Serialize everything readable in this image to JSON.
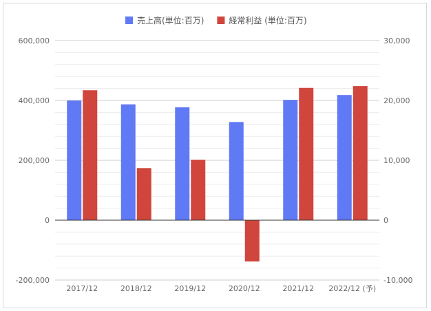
{
  "chart_data": {
    "type": "bar",
    "categories": [
      "2017/12",
      "2018/12",
      "2019/12",
      "2020/12",
      "2021/12",
      "2022/12 (予)"
    ],
    "series": [
      {
        "name": "売上高(単位:百万)",
        "axis": "left",
        "color": "#6079F4",
        "values": [
          400000,
          387000,
          377000,
          328000,
          402000,
          418000
        ]
      },
      {
        "name": "経常利益 (単位:百万)",
        "axis": "right",
        "color": "#D0453C",
        "values": [
          21700,
          8700,
          10100,
          -6900,
          22100,
          22400
        ]
      }
    ],
    "left_axis": {
      "min": -200000,
      "max": 600000,
      "ticks": [
        "600,000",
        "400,000",
        "200,000",
        "0",
        "-200,000"
      ],
      "tick_values": [
        600000,
        400000,
        200000,
        0,
        -200000
      ]
    },
    "right_axis": {
      "min": -10000,
      "max": 30000,
      "ticks": [
        "30,000",
        "20,000",
        "10,000",
        "0",
        "-10,000"
      ],
      "tick_values": [
        30000,
        20000,
        10000,
        0,
        -10000
      ]
    },
    "minor_gridlines": 4,
    "legend_position": "top",
    "grid": true
  }
}
